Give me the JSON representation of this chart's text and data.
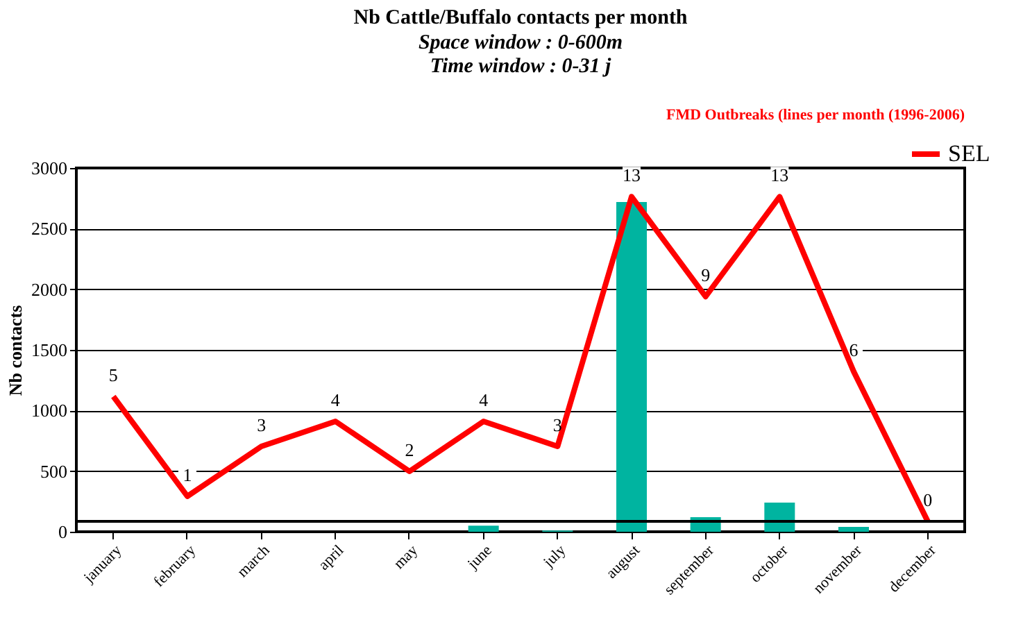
{
  "chart_data": {
    "type": "bar",
    "title": "Nb Cattle/Buffalo contacts per month",
    "subtitle": "Space window : 0-600m\nTime window : 0-31 j",
    "ylabel": "Nb  contacts",
    "annotations": [
      "FMD Outbreaks (lines per month (1996-2006)"
    ],
    "categories": [
      "january",
      "february",
      "march",
      "april",
      "may",
      "june",
      "july",
      "august",
      "september",
      "october",
      "november",
      "december"
    ],
    "series": [
      {
        "type": "bar",
        "color": "#00b4a0",
        "values": [
          0,
          0,
          0,
          0,
          0,
          50,
          10,
          2720,
          120,
          240,
          40,
          0
        ]
      },
      {
        "name": "SEL",
        "type": "line",
        "axis": "y2",
        "color": "#ff0000",
        "data_labels": true,
        "values": [
          5,
          1,
          3,
          4,
          2,
          4,
          3,
          13,
          9,
          13,
          6,
          0
        ]
      }
    ],
    "ylim": [
      0,
      3000
    ],
    "yticks": [
      0,
      500,
      1000,
      1500,
      2000,
      2500,
      3000
    ],
    "y2lim": [
      -0.42,
      14.15
    ],
    "ref_lines": [
      {
        "axis": "y2",
        "value": 0,
        "color": "#000000"
      }
    ],
    "grid": "y",
    "legend": "top right",
    "marker": "none",
    "line_style": "solid"
  }
}
